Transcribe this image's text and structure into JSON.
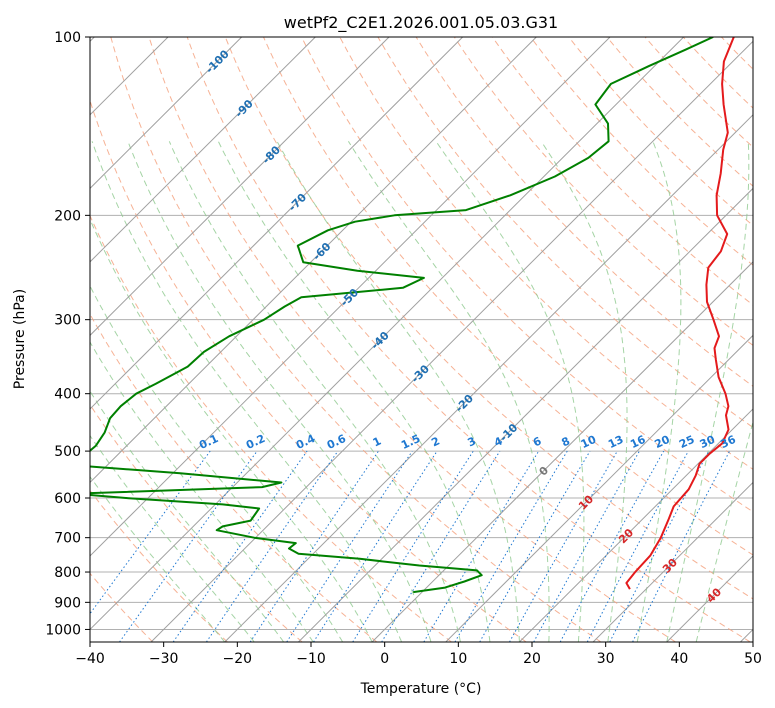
{
  "chart_data": {
    "type": "line",
    "title": "wetPf2_C2E1.2026.001.05.03.G31",
    "xlabel": "Temperature (°C)",
    "ylabel": "Pressure (hPa)",
    "xlim": [
      -40,
      50
    ],
    "ylim": [
      1050,
      100
    ],
    "y_scale": "log",
    "skew_factor": 35,
    "grid": true,
    "x_ticks": [
      "−40",
      "−30",
      "−20",
      "−10",
      "0",
      "10",
      "20",
      "30",
      "40",
      "50"
    ],
    "x_tick_values": [
      -40,
      -30,
      -20,
      -10,
      0,
      10,
      20,
      30,
      40,
      50
    ],
    "y_ticks": [
      "100",
      "200",
      "300",
      "400",
      "500",
      "600",
      "700",
      "800",
      "900",
      "1000"
    ],
    "y_tick_values": [
      100,
      200,
      300,
      400,
      500,
      600,
      700,
      800,
      900,
      1000
    ],
    "colors": {
      "temperature": "#e41a1c",
      "dewpoint": "#008000",
      "isotherm": "#a0a0a0",
      "dry_adiabat": "#f4a582",
      "moist_adiabat": "#8fc98f",
      "mixing_ratio": "#1f78d1",
      "isotherm_label": "#1f6fb2",
      "adiabat_label": "#d62728"
    },
    "series": [
      {
        "role": "temperature",
        "points": [
          {
            "p": 855,
            "t": 27.8
          },
          {
            "p": 835,
            "t": 26.5
          },
          {
            "p": 800,
            "t": 26.2
          },
          {
            "p": 750,
            "t": 26.0
          },
          {
            "p": 700,
            "t": 25.0
          },
          {
            "p": 650,
            "t": 23.5
          },
          {
            "p": 620,
            "t": 22.5
          },
          {
            "p": 580,
            "t": 22.2
          },
          {
            "p": 550,
            "t": 21.3
          },
          {
            "p": 525,
            "t": 20.2
          },
          {
            "p": 505,
            "t": 20.2
          },
          {
            "p": 485,
            "t": 20.5
          },
          {
            "p": 460,
            "t": 19.5
          },
          {
            "p": 435,
            "t": 17.2
          },
          {
            "p": 420,
            "t": 16.3
          },
          {
            "p": 400,
            "t": 14.2
          },
          {
            "p": 375,
            "t": 11.0
          },
          {
            "p": 350,
            "t": 8.2
          },
          {
            "p": 335,
            "t": 6.5
          },
          {
            "p": 320,
            "t": 5.5
          },
          {
            "p": 300,
            "t": 2.5
          },
          {
            "p": 280,
            "t": -0.8
          },
          {
            "p": 262,
            "t": -3.2
          },
          {
            "p": 245,
            "t": -5.3
          },
          {
            "p": 230,
            "t": -5.8
          },
          {
            "p": 215,
            "t": -7.3
          },
          {
            "p": 200,
            "t": -11.2
          },
          {
            "p": 185,
            "t": -14.0
          },
          {
            "p": 170,
            "t": -16.4
          },
          {
            "p": 155,
            "t": -19.3
          },
          {
            "p": 145,
            "t": -21.0
          },
          {
            "p": 130,
            "t": -25.4
          },
          {
            "p": 120,
            "t": -28.4
          },
          {
            "p": 110,
            "t": -31.2
          },
          {
            "p": 100,
            "t": -33.2
          }
        ]
      },
      {
        "role": "dewpoint",
        "points": [
          {
            "p": 865,
            "t": -1.2
          },
          {
            "p": 850,
            "t": 2.5
          },
          {
            "p": 830,
            "t": 4.3
          },
          {
            "p": 810,
            "t": 5.8
          },
          {
            "p": 795,
            "t": 4.5
          },
          {
            "p": 780,
            "t": -4.0
          },
          {
            "p": 760,
            "t": -13.0
          },
          {
            "p": 745,
            "t": -22.0
          },
          {
            "p": 730,
            "t": -24.0
          },
          {
            "p": 715,
            "t": -23.8
          },
          {
            "p": 700,
            "t": -30.2
          },
          {
            "p": 680,
            "t": -36.3
          },
          {
            "p": 670,
            "t": -36.0
          },
          {
            "p": 655,
            "t": -33.0
          },
          {
            "p": 625,
            "t": -33.5
          },
          {
            "p": 615,
            "t": -39.0
          },
          {
            "p": 600,
            "t": -53.0
          },
          {
            "p": 590,
            "t": -60.5
          },
          {
            "p": 575,
            "t": -36.0
          },
          {
            "p": 565,
            "t": -34.0
          },
          {
            "p": 545,
            "t": -49.0
          },
          {
            "p": 530,
            "t": -63.0
          },
          {
            "p": 515,
            "t": -64.5
          },
          {
            "p": 490,
            "t": -64.2
          },
          {
            "p": 465,
            "t": -64.8
          },
          {
            "p": 440,
            "t": -66.0
          },
          {
            "p": 420,
            "t": -66.2
          },
          {
            "p": 400,
            "t": -65.8
          },
          {
            "p": 385,
            "t": -64.5
          },
          {
            "p": 360,
            "t": -62.5
          },
          {
            "p": 340,
            "t": -62.3
          },
          {
            "p": 320,
            "t": -61.0
          },
          {
            "p": 300,
            "t": -58.5
          },
          {
            "p": 285,
            "t": -57.5
          },
          {
            "p": 275,
            "t": -56.5
          },
          {
            "p": 265,
            "t": -44.0
          },
          {
            "p": 255,
            "t": -42.5
          },
          {
            "p": 248,
            "t": -52.5
          },
          {
            "p": 240,
            "t": -61.0
          },
          {
            "p": 225,
            "t": -64.0
          },
          {
            "p": 212,
            "t": -62.0
          },
          {
            "p": 205,
            "t": -59.5
          },
          {
            "p": 200,
            "t": -55.0
          },
          {
            "p": 196,
            "t": -46.0
          },
          {
            "p": 185,
            "t": -42.0
          },
          {
            "p": 172,
            "t": -38.5
          },
          {
            "p": 160,
            "t": -36.5
          },
          {
            "p": 150,
            "t": -36.0
          },
          {
            "p": 140,
            "t": -38.5
          },
          {
            "p": 130,
            "t": -42.8
          },
          {
            "p": 120,
            "t": -43.5
          },
          {
            "p": 112,
            "t": -40.8
          },
          {
            "p": 105,
            "t": -38.0
          },
          {
            "p": 100,
            "t": -36.0
          }
        ]
      }
    ],
    "isotherm_labels": [
      {
        "t": "-100",
        "p": 110
      },
      {
        "t": "-90",
        "p": 132
      },
      {
        "t": "-80",
        "p": 158
      },
      {
        "t": "-70",
        "p": 190
      },
      {
        "t": "-60",
        "p": 230
      },
      {
        "t": "-50",
        "p": 275
      },
      {
        "t": "-40",
        "p": 325
      },
      {
        "t": "-30",
        "p": 370
      },
      {
        "t": "-20",
        "p": 415
      },
      {
        "t": "-10",
        "p": 465
      },
      {
        "t": "0",
        "p": 540
      }
    ],
    "dry_adiabat_labels": [
      {
        "t": "10",
        "p": 610
      },
      {
        "t": "20",
        "p": 695
      },
      {
        "t": "30",
        "p": 780
      },
      {
        "t": "40",
        "p": 875
      }
    ],
    "mixing_ratio_labels": [
      "0.1",
      "0.2",
      "0.4",
      "0.6",
      "1",
      "1.5",
      "2",
      "3",
      "4",
      "6",
      "8",
      "10",
      "13",
      "16",
      "20",
      "25",
      "30",
      "36"
    ],
    "mixing_ratio_values": [
      0.1,
      0.2,
      0.4,
      0.6,
      1,
      1.5,
      2,
      3,
      4,
      6,
      8,
      10,
      13,
      16,
      20,
      25,
      30,
      36
    ],
    "mixing_ratio_label_pressure": 500
  }
}
